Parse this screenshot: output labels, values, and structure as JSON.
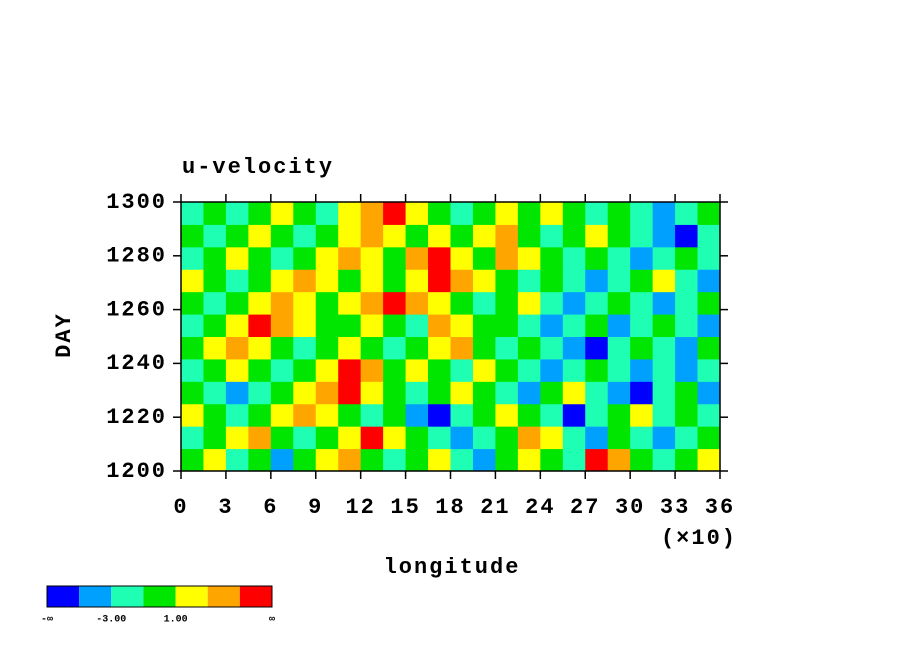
{
  "chart_data": {
    "type": "heatmap",
    "title": "u-velocity",
    "x_label": "longitude",
    "x_scale_label": "(×10)",
    "y_label": "DAY",
    "xlim": [
      0,
      36
    ],
    "ylim": [
      1200,
      1300
    ],
    "xticks": [
      0,
      3,
      6,
      9,
      12,
      15,
      18,
      21,
      24,
      27,
      30,
      33,
      36
    ],
    "yticks": [
      1200,
      1220,
      1240,
      1260,
      1280,
      1300
    ],
    "colorbar": {
      "colors": [
        "#0000ff",
        "#00a0ff",
        "#1effb4",
        "#00e600",
        "#ffff00",
        "#ffa500",
        "#ff0000"
      ],
      "boundary_labels": [
        "-∞",
        null,
        "-3.00",
        null,
        "1.00",
        null,
        null,
        "∞"
      ]
    },
    "z": [
      [
        3,
        4,
        2,
        3,
        1,
        3,
        4,
        5,
        3,
        2,
        3,
        4,
        2,
        1,
        3,
        4,
        3,
        2,
        6,
        5,
        3,
        2,
        3,
        4
      ],
      [
        2,
        3,
        4,
        5,
        3,
        2,
        3,
        4,
        6,
        4,
        3,
        2,
        1,
        2,
        3,
        5,
        4,
        2,
        1,
        3,
        2,
        1,
        2,
        3
      ],
      [
        4,
        3,
        2,
        3,
        4,
        5,
        4,
        3,
        2,
        3,
        1,
        0,
        2,
        3,
        4,
        3,
        2,
        0,
        2,
        3,
        4,
        2,
        3,
        2
      ],
      [
        3,
        2,
        1,
        2,
        3,
        4,
        5,
        6,
        4,
        3,
        2,
        3,
        4,
        3,
        2,
        1,
        3,
        4,
        2,
        1,
        0,
        2,
        3,
        1
      ],
      [
        2,
        3,
        4,
        3,
        2,
        3,
        4,
        6,
        5,
        3,
        4,
        3,
        2,
        4,
        3,
        2,
        1,
        2,
        3,
        2,
        1,
        2,
        1,
        2
      ],
      [
        3,
        4,
        5,
        4,
        3,
        2,
        3,
        4,
        3,
        2,
        3,
        4,
        5,
        3,
        2,
        3,
        2,
        1,
        0,
        2,
        3,
        2,
        1,
        3
      ],
      [
        2,
        3,
        4,
        6,
        5,
        4,
        3,
        3,
        4,
        3,
        2,
        5,
        4,
        3,
        3,
        2,
        1,
        2,
        3,
        1,
        2,
        3,
        2,
        1
      ],
      [
        3,
        2,
        3,
        4,
        5,
        4,
        3,
        4,
        5,
        6,
        5,
        4,
        3,
        2,
        3,
        4,
        2,
        1,
        2,
        3,
        2,
        1,
        2,
        3
      ],
      [
        4,
        3,
        2,
        3,
        4,
        5,
        4,
        3,
        4,
        3,
        4,
        6,
        5,
        4,
        3,
        2,
        3,
        2,
        1,
        2,
        3,
        4,
        2,
        1
      ],
      [
        2,
        3,
        4,
        3,
        2,
        3,
        4,
        5,
        4,
        3,
        5,
        6,
        4,
        3,
        5,
        4,
        3,
        2,
        3,
        2,
        1,
        2,
        3,
        2
      ],
      [
        3,
        2,
        3,
        4,
        3,
        2,
        3,
        4,
        5,
        4,
        3,
        4,
        3,
        4,
        5,
        3,
        2,
        3,
        4,
        3,
        2,
        1,
        0,
        2
      ],
      [
        2,
        3,
        2,
        3,
        4,
        3,
        2,
        4,
        5,
        6,
        4,
        3,
        2,
        3,
        4,
        3,
        4,
        3,
        2,
        3,
        2,
        1,
        2,
        3
      ]
    ]
  }
}
